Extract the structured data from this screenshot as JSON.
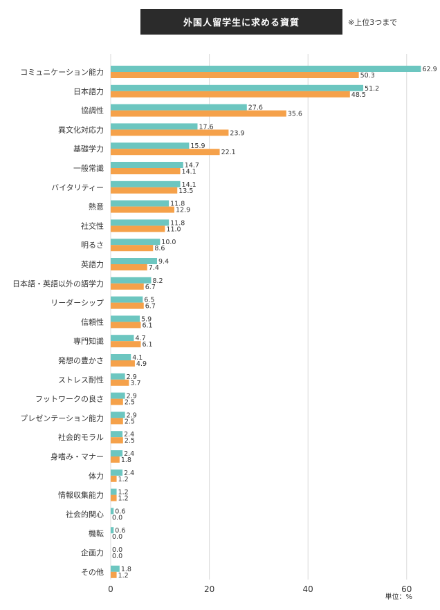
{
  "title": "外国人留学生に求める資質",
  "note": "※上位3つまで",
  "unit": "単位：%",
  "colors": {
    "series_a": "#6cc6c0",
    "series_b": "#f5a14a",
    "gridline": "#d9d9d9",
    "title_bg": "#2b2b2b"
  },
  "chart_data": {
    "type": "bar",
    "orientation": "horizontal",
    "title": "外国人留学生に求める資質",
    "xlabel": "",
    "ylabel": "",
    "unit": "単位：%",
    "xlim": [
      0,
      67
    ],
    "xticks": [
      0,
      20,
      40,
      60
    ],
    "grid": true,
    "categories": [
      "コミュニケーション能力",
      "日本語力",
      "協調性",
      "異文化対応力",
      "基礎学力",
      "一般常識",
      "バイタリティー",
      "熱意",
      "社交性",
      "明るさ",
      "英語力",
      "日本語・英語以外の語学力",
      "リーダーシップ",
      "信頼性",
      "専門知識",
      "発想の豊かさ",
      "ストレス耐性",
      "フットワークの良さ",
      "プレゼンテーション能力",
      "社会的モラル",
      "身嗜み・マナー",
      "体力",
      "情報収集能力",
      "社会的関心",
      "機転",
      "企画力",
      "その他"
    ],
    "series": [
      {
        "values": [
          62.9,
          51.2,
          27.6,
          17.6,
          15.9,
          14.7,
          14.1,
          11.8,
          11.8,
          10.0,
          9.4,
          8.2,
          6.5,
          5.9,
          4.7,
          4.1,
          2.9,
          2.9,
          2.9,
          2.4,
          2.4,
          2.4,
          1.2,
          0.6,
          0.6,
          0.0,
          1.8
        ],
        "labels": [
          "62.9",
          "51.2",
          "27.6",
          "17.6",
          "15.9",
          "14.7",
          "14.1",
          "11.8",
          "11.8",
          "10.0",
          "9.4",
          "8.2",
          "6.5",
          "5.9",
          "4.7",
          "4.1",
          "2.9",
          "2.9",
          "2.9",
          "2.4",
          "2.4",
          "2.4",
          "1.2",
          "0.6",
          "0.6",
          "0.0",
          "1.8"
        ]
      },
      {
        "values": [
          50.3,
          48.5,
          35.6,
          23.9,
          22.1,
          14.1,
          13.5,
          12.9,
          11.0,
          8.6,
          7.4,
          6.7,
          6.7,
          6.1,
          6.1,
          4.9,
          3.7,
          2.5,
          2.5,
          2.5,
          1.8,
          1.2,
          1.2,
          0.0,
          0.0,
          0.0,
          1.2
        ],
        "labels": [
          "50.3",
          "48.5",
          "35.6",
          "23.9",
          "22.1",
          "14.1",
          "13.5",
          "12.9",
          "11.0",
          "8.6",
          "7.4",
          "6.7",
          "6.7",
          "6.1",
          "6.1",
          "4.9",
          "3.7",
          "2.5",
          "2.5",
          "2.5",
          "1.8",
          "1.2",
          "1.2",
          "0.0",
          "0.0",
          "0.0",
          "1.2"
        ]
      }
    ]
  }
}
